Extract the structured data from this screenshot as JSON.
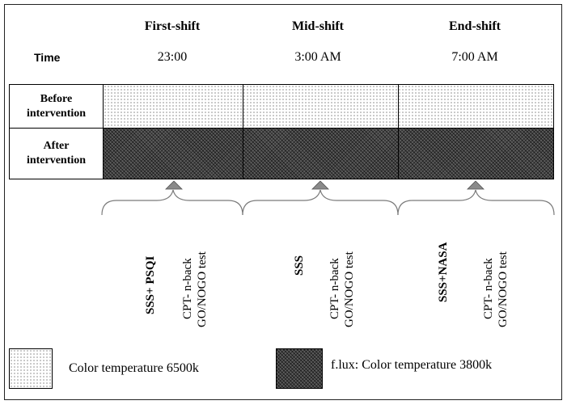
{
  "columns": [
    {
      "title": "First-shift",
      "time": "23:00"
    },
    {
      "title": "Mid-shift",
      "time": "3:00 AM"
    },
    {
      "title": "End-shift",
      "time": "7:00 AM"
    }
  ],
  "time_label": "Time",
  "rows": {
    "before": [
      "Before",
      "intervention"
    ],
    "after": [
      "After",
      "intervention"
    ]
  },
  "measures": [
    {
      "primary": "SSS+ PSQI",
      "tests": [
        "CPT- n-back",
        "GO/NOGO test"
      ]
    },
    {
      "primary": "SSS",
      "tests": [
        "CPT- n-back",
        "GO/NOGO test"
      ]
    },
    {
      "primary": "SSS+NASA",
      "tests": [
        "CPT- n-back",
        "GO/NOGO test"
      ]
    }
  ],
  "legend": {
    "light": "Color temperature 6500k",
    "dark": "f.lux: Color temperature 3800k"
  }
}
